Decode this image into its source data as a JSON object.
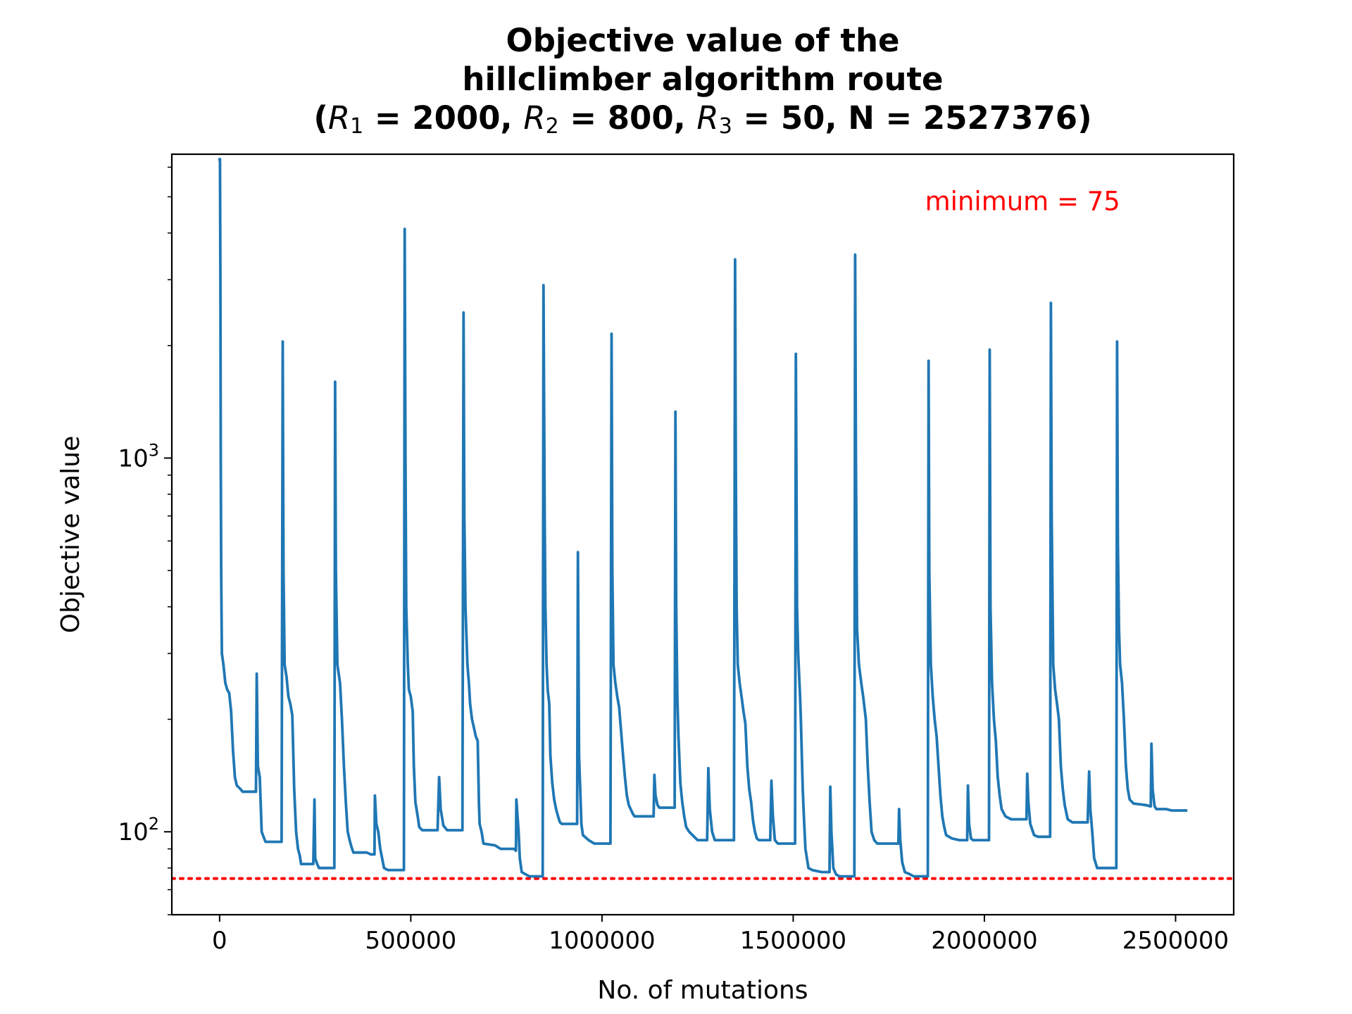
{
  "chart_data": {
    "type": "line",
    "title": {
      "line1": "Objective value of the",
      "line2": "hillclimber algorithm route",
      "line3": {
        "open": "(",
        "r1_sym": "R",
        "r1_sub": "1",
        "r1_rest": " = 2000, ",
        "r2_sym": "R",
        "r2_sub": "2",
        "r2_rest": " = 800, ",
        "r3_sym": "R",
        "r3_sub": "3",
        "r3_rest": " = 50, N = 2527376)"
      }
    },
    "xlabel": "No. of mutations",
    "ylabel": "Objective value",
    "xscale": "linear",
    "yscale": "log",
    "xlim": [
      -125000,
      2652000
    ],
    "ylim": [
      60,
      6500
    ],
    "xticks": [
      0,
      500000,
      1000000,
      1500000,
      2000000,
      2500000
    ],
    "xtick_labels": [
      "0",
      "500000",
      "1000000",
      "1500000",
      "2000000",
      "2500000"
    ],
    "yticks_major": [
      100,
      1000
    ],
    "ytick_labels": [
      {
        "base": "10",
        "exp": "2"
      },
      {
        "base": "10",
        "exp": "3"
      }
    ],
    "yticks_minor": [
      60,
      70,
      80,
      90,
      200,
      300,
      400,
      500,
      600,
      700,
      800,
      900,
      2000,
      3000,
      4000,
      5000,
      6000
    ],
    "grid": false,
    "reference_line": {
      "value": 75,
      "style": "dotted",
      "color": "#ff0000"
    },
    "annotation": {
      "text": "minimum = 75",
      "x": 2100000,
      "y": 4600,
      "color": "#ff0000"
    },
    "series": [
      {
        "color": "#1f77b4",
        "points": [
          [
            0,
            6300
          ],
          [
            1000,
            6300
          ],
          [
            2000,
            3000
          ],
          [
            3000,
            1000
          ],
          [
            4000,
            500
          ],
          [
            5000,
            380
          ],
          [
            6000,
            300
          ],
          [
            10000,
            280
          ],
          [
            15000,
            250
          ],
          [
            20000,
            240
          ],
          [
            25000,
            235
          ],
          [
            30000,
            210
          ],
          [
            35000,
            165
          ],
          [
            40000,
            140
          ],
          [
            45000,
            133
          ],
          [
            55000,
            130
          ],
          [
            60000,
            128
          ],
          [
            95000,
            128
          ],
          [
            97000,
            265
          ],
          [
            100000,
            150
          ],
          [
            105000,
            140
          ],
          [
            110000,
            100
          ],
          [
            115000,
            97
          ],
          [
            120000,
            94
          ],
          [
            162000,
            94
          ],
          [
            165000,
            2050
          ],
          [
            167000,
            500
          ],
          [
            170000,
            280
          ],
          [
            175000,
            260
          ],
          [
            180000,
            230
          ],
          [
            185000,
            220
          ],
          [
            190000,
            205
          ],
          [
            195000,
            130
          ],
          [
            200000,
            100
          ],
          [
            205000,
            90
          ],
          [
            210000,
            86
          ],
          [
            213000,
            82
          ],
          [
            245000,
            82
          ],
          [
            248000,
            122
          ],
          [
            250000,
            85
          ],
          [
            255000,
            82
          ],
          [
            260000,
            80
          ],
          [
            300000,
            80
          ],
          [
            302000,
            1600
          ],
          [
            304000,
            500
          ],
          [
            308000,
            280
          ],
          [
            315000,
            250
          ],
          [
            320000,
            200
          ],
          [
            325000,
            150
          ],
          [
            330000,
            120
          ],
          [
            335000,
            100
          ],
          [
            340000,
            95
          ],
          [
            345000,
            91
          ],
          [
            350000,
            88
          ],
          [
            385000,
            88
          ],
          [
            395000,
            87
          ],
          [
            405000,
            87
          ],
          [
            406000,
            125
          ],
          [
            410000,
            105
          ],
          [
            415000,
            100
          ],
          [
            420000,
            90
          ],
          [
            430000,
            80
          ],
          [
            440000,
            79
          ],
          [
            482000,
            79
          ],
          [
            484000,
            4100
          ],
          [
            486000,
            1000
          ],
          [
            488000,
            400
          ],
          [
            492000,
            280
          ],
          [
            495000,
            240
          ],
          [
            500000,
            230
          ],
          [
            505000,
            210
          ],
          [
            508000,
            150
          ],
          [
            512000,
            120
          ],
          [
            518000,
            110
          ],
          [
            522000,
            103
          ],
          [
            530000,
            101
          ],
          [
            570000,
            101
          ],
          [
            574000,
            140
          ],
          [
            578000,
            115
          ],
          [
            585000,
            104
          ],
          [
            595000,
            101
          ],
          [
            635000,
            101
          ],
          [
            638000,
            2450
          ],
          [
            640000,
            700
          ],
          [
            643000,
            400
          ],
          [
            648000,
            280
          ],
          [
            652000,
            250
          ],
          [
            655000,
            220
          ],
          [
            660000,
            200
          ],
          [
            665000,
            190
          ],
          [
            670000,
            180
          ],
          [
            675000,
            175
          ],
          [
            678000,
            120
          ],
          [
            680000,
            105
          ],
          [
            685000,
            100
          ],
          [
            690000,
            93
          ],
          [
            720000,
            92
          ],
          [
            735000,
            90
          ],
          [
            770000,
            90
          ],
          [
            775000,
            89
          ],
          [
            776000,
            122
          ],
          [
            782000,
            100
          ],
          [
            785000,
            85
          ],
          [
            790000,
            78
          ],
          [
            800000,
            77
          ],
          [
            810000,
            76
          ],
          [
            845000,
            76
          ],
          [
            847000,
            2900
          ],
          [
            850000,
            700
          ],
          [
            852000,
            400
          ],
          [
            855000,
            280
          ],
          [
            858000,
            240
          ],
          [
            862000,
            220
          ],
          [
            865000,
            160
          ],
          [
            870000,
            135
          ],
          [
            875000,
            122
          ],
          [
            880000,
            115
          ],
          [
            885000,
            110
          ],
          [
            890000,
            106
          ],
          [
            895000,
            105
          ],
          [
            935000,
            105
          ],
          [
            937000,
            560
          ],
          [
            940000,
            160
          ],
          [
            943000,
            130
          ],
          [
            946000,
            105
          ],
          [
            950000,
            98
          ],
          [
            965000,
            95
          ],
          [
            980000,
            93
          ],
          [
            1022000,
            93
          ],
          [
            1025000,
            2150
          ],
          [
            1027000,
            500
          ],
          [
            1030000,
            280
          ],
          [
            1035000,
            250
          ],
          [
            1040000,
            230
          ],
          [
            1045000,
            215
          ],
          [
            1050000,
            185
          ],
          [
            1055000,
            160
          ],
          [
            1060000,
            140
          ],
          [
            1065000,
            125
          ],
          [
            1070000,
            118
          ],
          [
            1075000,
            115
          ],
          [
            1080000,
            112
          ],
          [
            1085000,
            110
          ],
          [
            1135000,
            110
          ],
          [
            1137000,
            142
          ],
          [
            1140000,
            125
          ],
          [
            1145000,
            118
          ],
          [
            1150000,
            116
          ],
          [
            1190000,
            116
          ],
          [
            1192000,
            1330
          ],
          [
            1194000,
            400
          ],
          [
            1197000,
            230
          ],
          [
            1200000,
            180
          ],
          [
            1205000,
            135
          ],
          [
            1210000,
            120
          ],
          [
            1215000,
            110
          ],
          [
            1220000,
            103
          ],
          [
            1228000,
            100
          ],
          [
            1250000,
            95
          ],
          [
            1275000,
            95
          ],
          [
            1278000,
            148
          ],
          [
            1282000,
            115
          ],
          [
            1288000,
            100
          ],
          [
            1295000,
            95
          ],
          [
            1345000,
            95
          ],
          [
            1348000,
            3400
          ],
          [
            1350000,
            900
          ],
          [
            1352000,
            400
          ],
          [
            1355000,
            280
          ],
          [
            1360000,
            250
          ],
          [
            1365000,
            230
          ],
          [
            1370000,
            210
          ],
          [
            1375000,
            195
          ],
          [
            1380000,
            150
          ],
          [
            1385000,
            130
          ],
          [
            1390000,
            120
          ],
          [
            1395000,
            107
          ],
          [
            1400000,
            100
          ],
          [
            1405000,
            96
          ],
          [
            1410000,
            95
          ],
          [
            1440000,
            95
          ],
          [
            1443000,
            137
          ],
          [
            1447000,
            110
          ],
          [
            1452000,
            95
          ],
          [
            1460000,
            93
          ],
          [
            1505000,
            93
          ],
          [
            1507000,
            1900
          ],
          [
            1510000,
            400
          ],
          [
            1513000,
            300
          ],
          [
            1518000,
            230
          ],
          [
            1520000,
            200
          ],
          [
            1525000,
            130
          ],
          [
            1528000,
            110
          ],
          [
            1532000,
            90
          ],
          [
            1540000,
            80
          ],
          [
            1550000,
            79
          ],
          [
            1575000,
            78
          ],
          [
            1595000,
            78
          ],
          [
            1597000,
            132
          ],
          [
            1600000,
            100
          ],
          [
            1605000,
            80
          ],
          [
            1612000,
            77
          ],
          [
            1620000,
            76
          ],
          [
            1660000,
            76
          ],
          [
            1662000,
            3500
          ],
          [
            1664000,
            1000
          ],
          [
            1667000,
            350
          ],
          [
            1672000,
            280
          ],
          [
            1678000,
            250
          ],
          [
            1683000,
            230
          ],
          [
            1690000,
            200
          ],
          [
            1695000,
            150
          ],
          [
            1700000,
            120
          ],
          [
            1705000,
            100
          ],
          [
            1712000,
            95
          ],
          [
            1720000,
            93
          ],
          [
            1760000,
            93
          ],
          [
            1775000,
            93
          ],
          [
            1777000,
            115
          ],
          [
            1780000,
            95
          ],
          [
            1785000,
            83
          ],
          [
            1792000,
            78
          ],
          [
            1805000,
            77
          ],
          [
            1815000,
            76
          ],
          [
            1852000,
            76
          ],
          [
            1854000,
            1820
          ],
          [
            1856000,
            500
          ],
          [
            1860000,
            280
          ],
          [
            1865000,
            230
          ],
          [
            1870000,
            200
          ],
          [
            1875000,
            180
          ],
          [
            1880000,
            150
          ],
          [
            1885000,
            125
          ],
          [
            1890000,
            110
          ],
          [
            1895000,
            103
          ],
          [
            1900000,
            98
          ],
          [
            1915000,
            96
          ],
          [
            1935000,
            95
          ],
          [
            1955000,
            95
          ],
          [
            1957000,
            133
          ],
          [
            1960000,
            105
          ],
          [
            1965000,
            96
          ],
          [
            1970000,
            95
          ],
          [
            2012000,
            95
          ],
          [
            2014000,
            1950
          ],
          [
            2016000,
            400
          ],
          [
            2020000,
            250
          ],
          [
            2025000,
            200
          ],
          [
            2030000,
            175
          ],
          [
            2035000,
            140
          ],
          [
            2040000,
            125
          ],
          [
            2045000,
            115
          ],
          [
            2055000,
            110
          ],
          [
            2070000,
            108
          ],
          [
            2110000,
            108
          ],
          [
            2112000,
            143
          ],
          [
            2115000,
            120
          ],
          [
            2120000,
            105
          ],
          [
            2130000,
            98
          ],
          [
            2140000,
            97
          ],
          [
            2172000,
            97
          ],
          [
            2174000,
            2600
          ],
          [
            2176000,
            700
          ],
          [
            2180000,
            280
          ],
          [
            2185000,
            240
          ],
          [
            2190000,
            220
          ],
          [
            2195000,
            200
          ],
          [
            2200000,
            150
          ],
          [
            2205000,
            130
          ],
          [
            2210000,
            118
          ],
          [
            2218000,
            108
          ],
          [
            2230000,
            106
          ],
          [
            2270000,
            106
          ],
          [
            2274000,
            145
          ],
          [
            2277000,
            115
          ],
          [
            2282000,
            100
          ],
          [
            2287000,
            85
          ],
          [
            2295000,
            80
          ],
          [
            2330000,
            80
          ],
          [
            2345000,
            80
          ],
          [
            2347000,
            2050
          ],
          [
            2349000,
            600
          ],
          [
            2352000,
            350
          ],
          [
            2355000,
            280
          ],
          [
            2360000,
            250
          ],
          [
            2365000,
            200
          ],
          [
            2370000,
            150
          ],
          [
            2375000,
            130
          ],
          [
            2380000,
            122
          ],
          [
            2390000,
            119
          ],
          [
            2420000,
            118
          ],
          [
            2435000,
            117
          ],
          [
            2437000,
            172
          ],
          [
            2440000,
            130
          ],
          [
            2445000,
            117
          ],
          [
            2450000,
            115
          ],
          [
            2475000,
            115
          ],
          [
            2490000,
            114
          ],
          [
            2527376,
            114
          ]
        ]
      }
    ]
  }
}
